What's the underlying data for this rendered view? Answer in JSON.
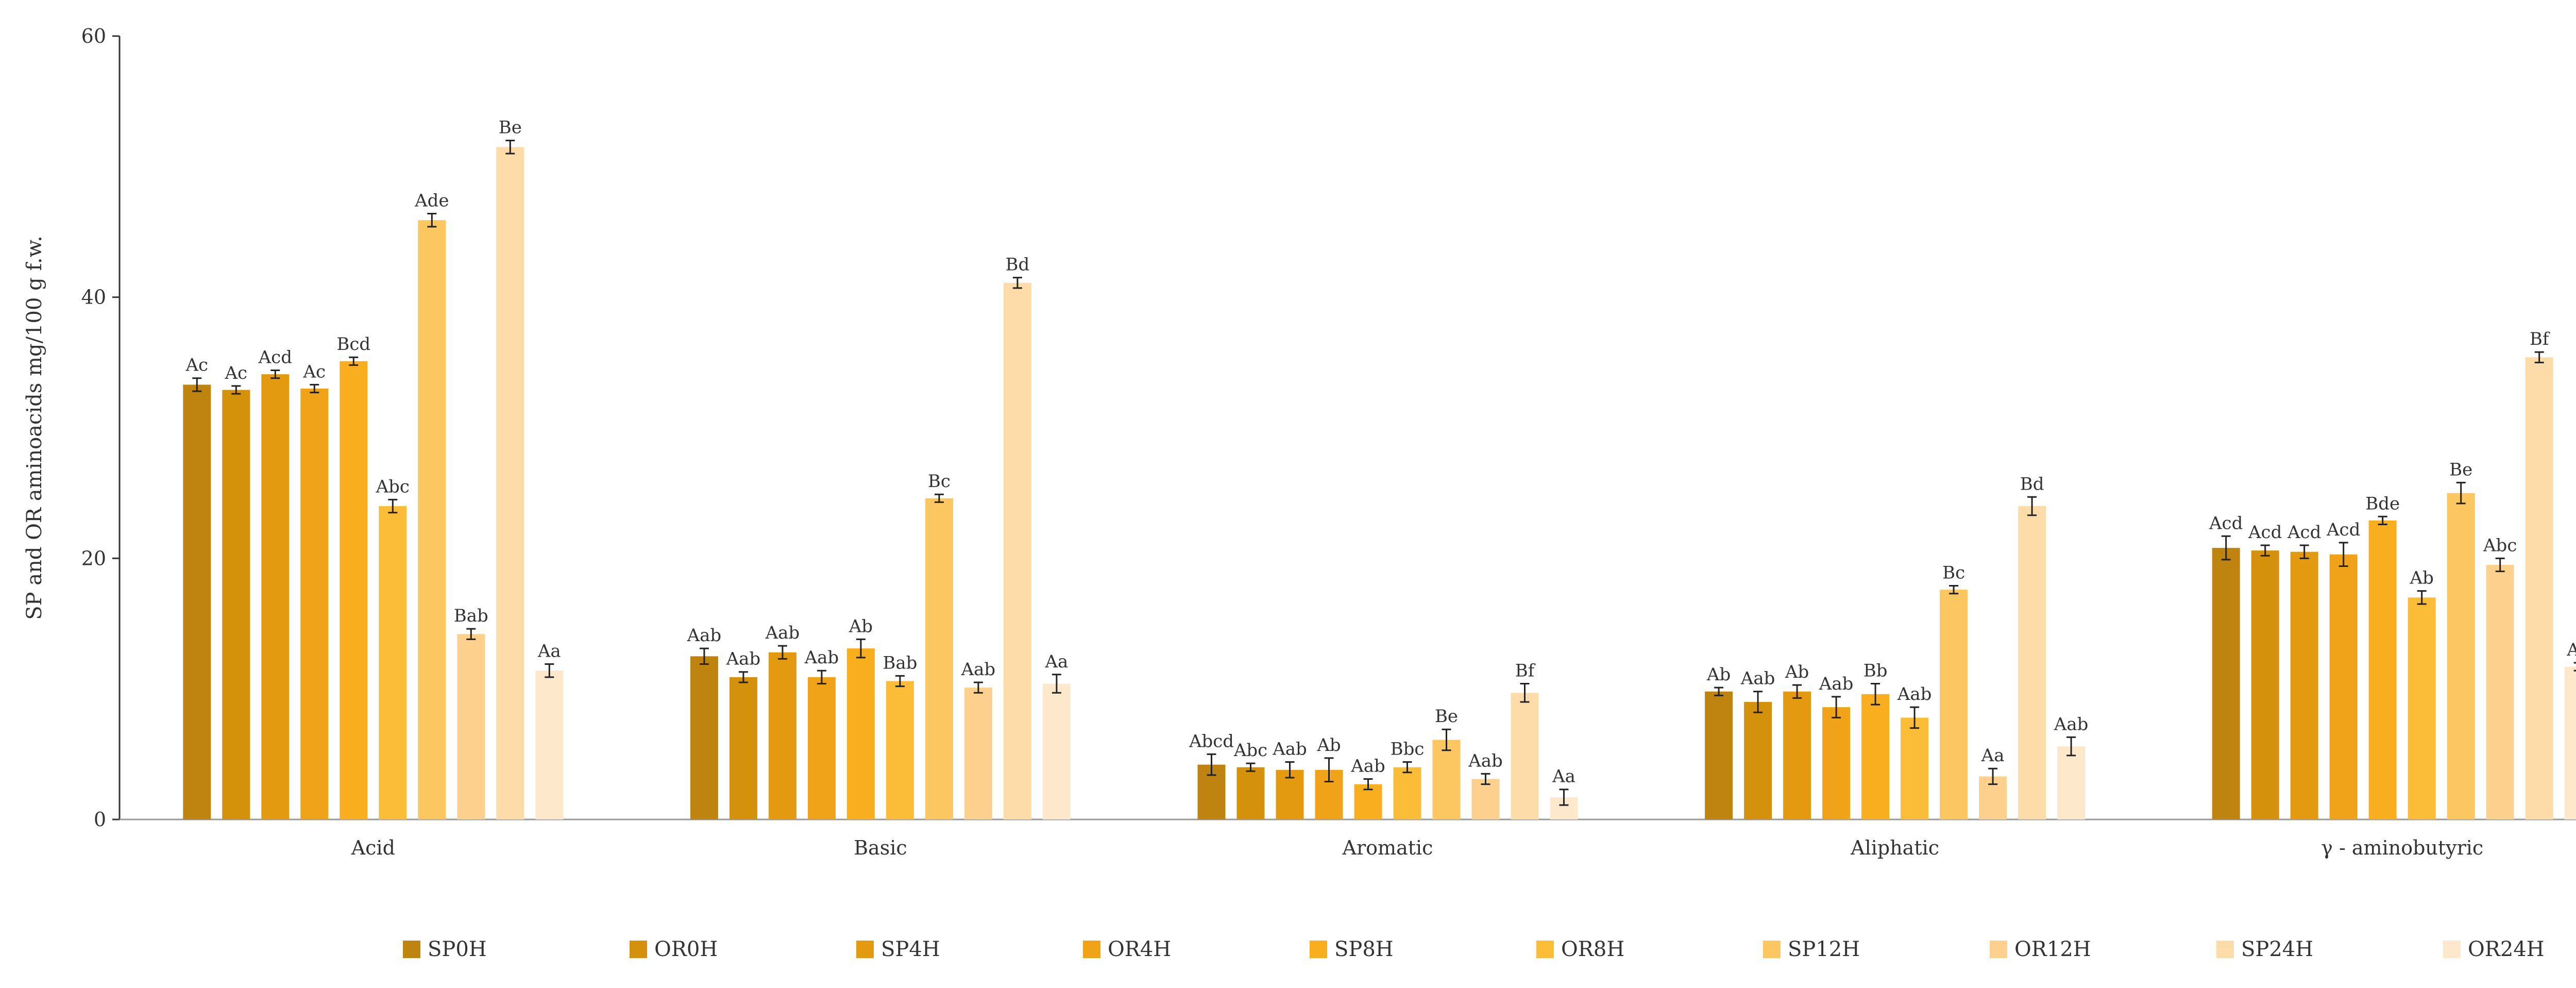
{
  "chart_data": {
    "type": "bar",
    "ylabel": "SP and OR aminoacids mg/100 g f.w.",
    "xlabel": "",
    "ylim": [
      0,
      60
    ],
    "yticks": [
      0,
      20,
      40,
      60
    ],
    "grid": false,
    "legend_position": "bottom",
    "categories": [
      "Acid",
      "Basic",
      "Aromatic",
      "Aliphatic",
      "γ - aminobutyric"
    ],
    "series": [
      {
        "name": "SP0H",
        "color": "#bf8410",
        "values": [
          33.3,
          12.5,
          4.2,
          9.8,
          20.8
        ],
        "errors": [
          0.5,
          0.6,
          0.8,
          0.3,
          0.9
        ],
        "labels": [
          "Ac",
          "Aab",
          "Abcd",
          "Ab",
          "Acd"
        ]
      },
      {
        "name": "OR0H",
        "color": "#d4910c",
        "values": [
          32.9,
          10.9,
          4.0,
          9.0,
          20.6
        ],
        "errors": [
          0.3,
          0.4,
          0.3,
          0.8,
          0.4
        ],
        "labels": [
          "Ac",
          "Aab",
          "Abc",
          "Aab",
          "Acd"
        ]
      },
      {
        "name": "SP4H",
        "color": "#e39a10",
        "values": [
          34.1,
          12.8,
          3.8,
          9.8,
          20.5
        ],
        "errors": [
          0.3,
          0.5,
          0.6,
          0.5,
          0.5
        ],
        "labels": [
          "Acd",
          "Aab",
          "Aab",
          "Ab",
          "Acd"
        ]
      },
      {
        "name": "OR4H",
        "color": "#f0a318",
        "values": [
          33.0,
          10.9,
          3.8,
          8.6,
          20.3
        ],
        "errors": [
          0.3,
          0.5,
          0.9,
          0.8,
          0.9
        ],
        "labels": [
          "Ac",
          "Aab",
          "Ab",
          "Aab",
          "Acd"
        ]
      },
      {
        "name": "SP8H",
        "color": "#f8ae1e",
        "values": [
          35.1,
          13.1,
          2.7,
          9.6,
          22.9
        ],
        "errors": [
          0.3,
          0.7,
          0.4,
          0.8,
          0.3
        ],
        "labels": [
          "Bcd",
          "Ab",
          "Aab",
          "Bb",
          "Bde"
        ]
      },
      {
        "name": "OR8H",
        "color": "#fbbd38",
        "values": [
          24.0,
          10.6,
          4.0,
          7.8,
          17.0
        ],
        "errors": [
          0.5,
          0.4,
          0.4,
          0.8,
          0.5
        ],
        "labels": [
          "Abc",
          "Bab",
          "Bbc",
          "Aab",
          "Ab"
        ]
      },
      {
        "name": "SP12H",
        "color": "#fcc761",
        "values": [
          45.9,
          24.6,
          6.1,
          17.6,
          25.0
        ],
        "errors": [
          0.5,
          0.3,
          0.8,
          0.3,
          0.8
        ],
        "labels": [
          "Ade",
          "Bc",
          "Be",
          "Bc",
          "Be"
        ]
      },
      {
        "name": "OR12H",
        "color": "#fdd18d",
        "values": [
          14.2,
          10.1,
          3.1,
          3.3,
          19.5
        ],
        "errors": [
          0.4,
          0.4,
          0.4,
          0.6,
          0.5
        ],
        "labels": [
          "Bab",
          "Aab",
          "Aab",
          "Aa",
          "Abc"
        ]
      },
      {
        "name": "SP24H",
        "color": "#fedcaa",
        "values": [
          51.5,
          41.1,
          9.7,
          24.0,
          35.4
        ],
        "errors": [
          0.5,
          0.4,
          0.7,
          0.7,
          0.4
        ],
        "labels": [
          "Be",
          "Bd",
          "Bf",
          "Bd",
          "Bf"
        ]
      },
      {
        "name": "OR24H",
        "color": "#fee8cc",
        "values": [
          11.4,
          10.4,
          1.7,
          5.6,
          11.7
        ],
        "errors": [
          0.5,
          0.7,
          0.6,
          0.7,
          0.3
        ],
        "labels": [
          "Aa",
          "Aa",
          "Aa",
          "Aab",
          "Aa"
        ]
      }
    ]
  }
}
